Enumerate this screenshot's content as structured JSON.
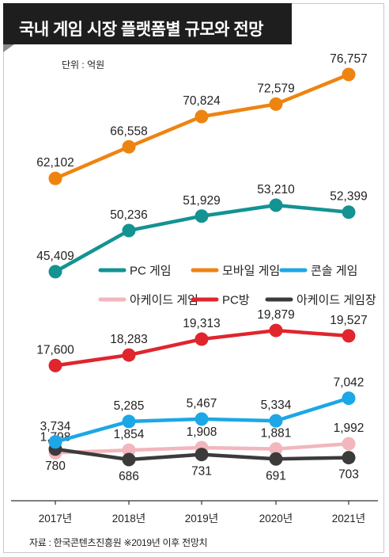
{
  "chart_data": {
    "type": "line",
    "title": "국내 게임 시장 플랫폼별 규모와 전망",
    "unit": "단위 : 억원",
    "categories": [
      "2017년",
      "2018년",
      "2019년",
      "2020년",
      "2021년"
    ],
    "series": [
      {
        "name": "모바일 게임",
        "color": "#ee8410",
        "values": [
          62102,
          66558,
          70824,
          72579,
          76757
        ]
      },
      {
        "name": "PC 게임",
        "color": "#139392",
        "values": [
          45409,
          50236,
          51929,
          53210,
          52399
        ]
      },
      {
        "name": "PC방",
        "color": "#e0252d",
        "values": [
          17600,
          18283,
          19313,
          19879,
          19527
        ]
      },
      {
        "name": "콘솔 게임",
        "color": "#1ca7e6",
        "values": [
          3734,
          5285,
          5467,
          5334,
          7042
        ]
      },
      {
        "name": "아케이드 게임",
        "color": "#f2b6bd",
        "values": [
          1798,
          1854,
          1908,
          1881,
          1992
        ]
      },
      {
        "name": "아케이드 게임장",
        "color": "#3b3b3b",
        "values": [
          780,
          686,
          731,
          691,
          703
        ]
      }
    ],
    "value_labels": {
      "모바일 게임": [
        "62,102",
        "66,558",
        "70,824",
        "72,579",
        "76,757"
      ],
      "PC 게임": [
        "45,409",
        "50,236",
        "51,929",
        "53,210",
        "52,399"
      ],
      "PC방": [
        "17,600",
        "18,283",
        "19,313",
        "19,879",
        "19,527"
      ],
      "콘솔 게임": [
        "3,734",
        "5,285",
        "5,467",
        "5,334",
        "7,042"
      ],
      "아케이드 게임": [
        "1,798",
        "1,854",
        "1,908",
        "1,881",
        "1,992"
      ],
      "아케이드 게임장": [
        "780",
        "686",
        "731",
        "691",
        "703"
      ]
    },
    "legend": [
      "PC 게임",
      "모바일 게임",
      "콘솔 게임",
      "아케이드 게임",
      "PC방",
      "아케이드 게임장"
    ],
    "legend_placement": "middle",
    "grid": false,
    "source": "자료 : 한국콘텐츠진흥원 ※2019년 이후 전망치"
  }
}
